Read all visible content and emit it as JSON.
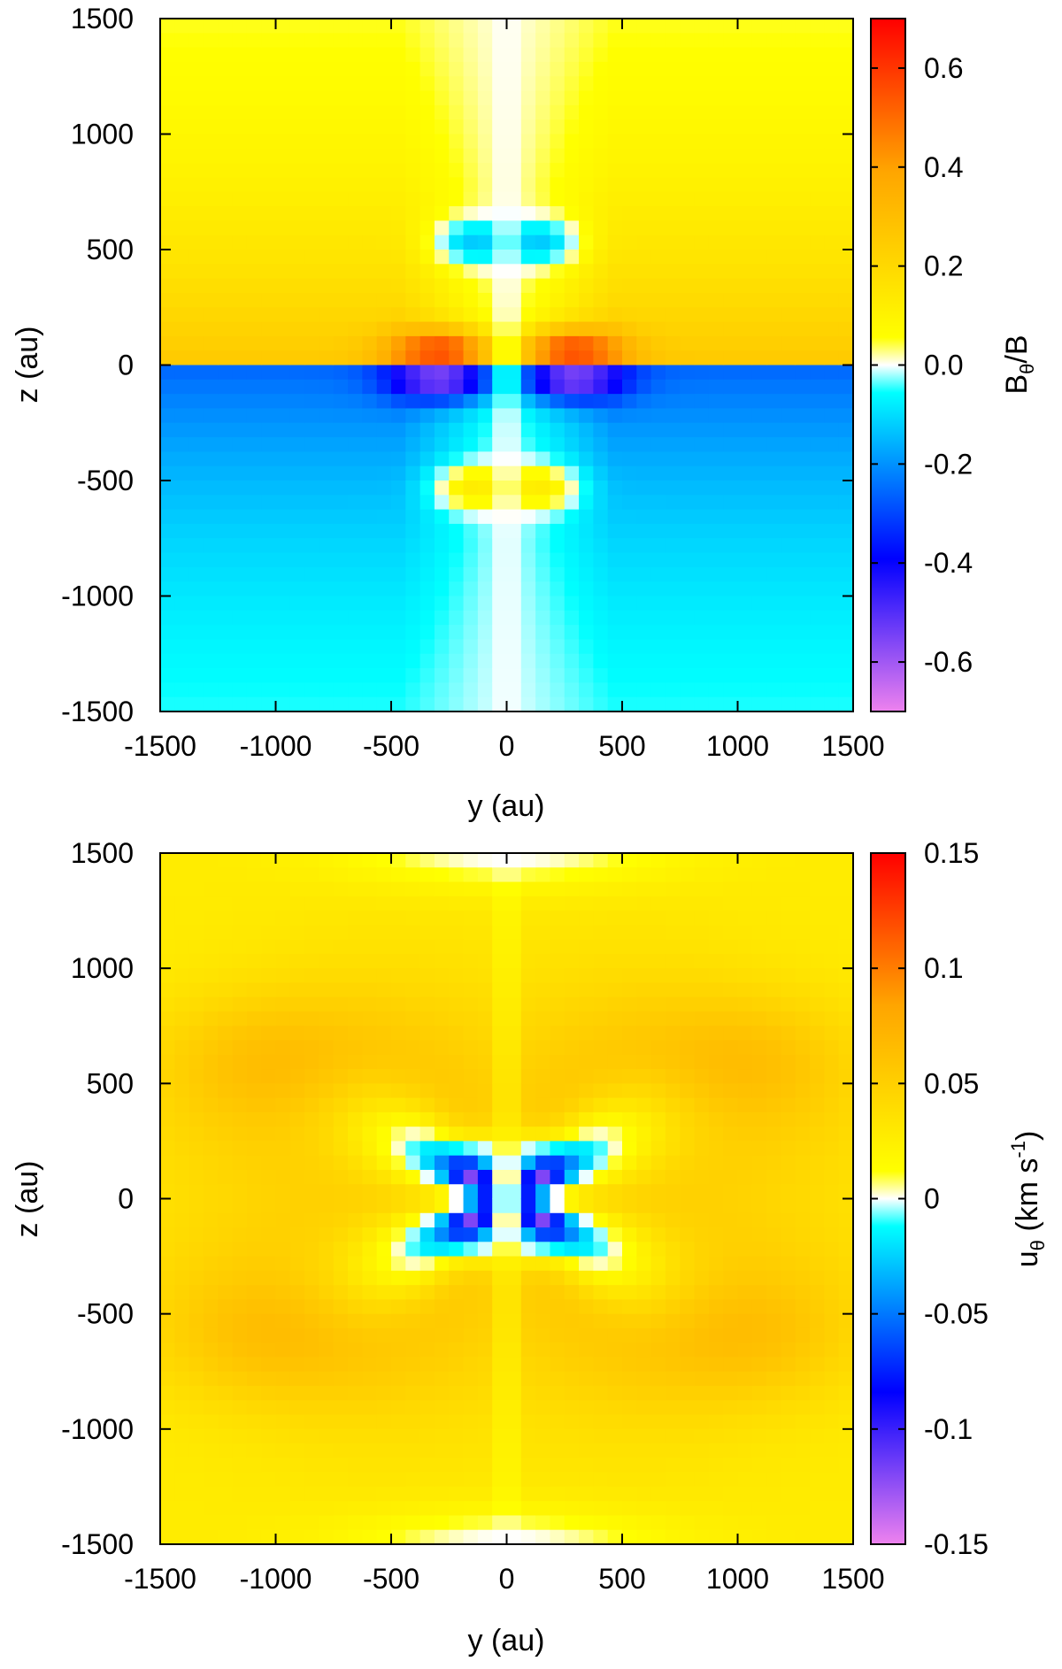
{
  "chart_data": [
    {
      "type": "heatmap",
      "xlabel": "y (au)",
      "ylabel": "z (au)",
      "xlim": [
        -1500,
        1500
      ],
      "ylim": [
        -1500,
        1500
      ],
      "xticks": [
        -1500,
        -1000,
        -500,
        0,
        500,
        1000,
        1500
      ],
      "yticks": [
        -1500,
        -1000,
        -500,
        0,
        500,
        1000,
        1500
      ],
      "x_tick_labels": [
        "-1500",
        "-1000",
        "-500",
        "0",
        "500",
        "1000",
        "1500"
      ],
      "y_tick_labels": [
        "-1500",
        "-1000",
        "-500",
        "0",
        "500",
        "1000",
        "1500"
      ],
      "colorbar": {
        "label_base": "B",
        "label_sub": "θ",
        "label_rest": "/B",
        "range": [
          -0.7,
          0.7
        ],
        "ticks": [
          0.6,
          0.4,
          0.2,
          0.0,
          -0.2,
          -0.4,
          -0.6
        ],
        "tick_labels": [
          "0.6",
          "0.4",
          "0.2",
          "0.0",
          "-0.2",
          "-0.4",
          "-0.6"
        ]
      }
    },
    {
      "type": "heatmap",
      "xlabel": "y (au)",
      "ylabel": "z (au)",
      "xlim": [
        -1500,
        1500
      ],
      "ylim": [
        -1500,
        1500
      ],
      "xticks": [
        -1500,
        -1000,
        -500,
        0,
        500,
        1000,
        1500
      ],
      "yticks": [
        -1500,
        -1000,
        -500,
        0,
        500,
        1000,
        1500
      ],
      "x_tick_labels": [
        "-1500",
        "-1000",
        "-500",
        "0",
        "500",
        "1000",
        "1500"
      ],
      "y_tick_labels": [
        "-1500",
        "-1000",
        "-500",
        "0",
        "500",
        "1000",
        "1500"
      ],
      "colorbar": {
        "label_base": "u",
        "label_sub": "θ",
        "label_rest": " (km s",
        "label_sup": "-1",
        "label_end": ")",
        "range": [
          -0.15,
          0.15
        ],
        "ticks": [
          0.15,
          0.1,
          0.05,
          0,
          -0.05,
          -0.1,
          -0.15
        ],
        "tick_labels": [
          "0.15",
          "0.1",
          "0.05",
          "0",
          "-0.05",
          "-0.1",
          "-0.15"
        ]
      }
    }
  ],
  "colors": {
    "colormap": [
      "#ee82ee",
      "#0000ff",
      "#00ffff",
      "#ffffff",
      "#ffff00",
      "#ffa500",
      "#ff0000"
    ]
  }
}
